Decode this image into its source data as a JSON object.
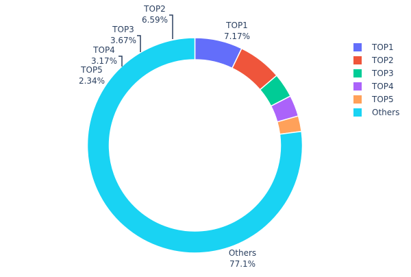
{
  "chart_data": {
    "type": "pie",
    "hole": true,
    "direction": "clockwise",
    "categories": [
      "TOP1",
      "TOP2",
      "TOP3",
      "TOP4",
      "TOP5",
      "Others"
    ],
    "values": [
      7.17,
      6.59,
      3.67,
      3.17,
      2.34,
      77.1
    ],
    "labels": [
      "7.17%",
      "6.59%",
      "3.67%",
      "3.17%",
      "2.34%",
      "77.1%"
    ],
    "colors": [
      "#636efa",
      "#ef553b",
      "#00cc96",
      "#ab63fa",
      "#ffa15a",
      "#19d3f3"
    ],
    "legend": {
      "placement": "right",
      "items": [
        "TOP1",
        "TOP2",
        "TOP3",
        "TOP4",
        "TOP5",
        "Others"
      ]
    }
  }
}
